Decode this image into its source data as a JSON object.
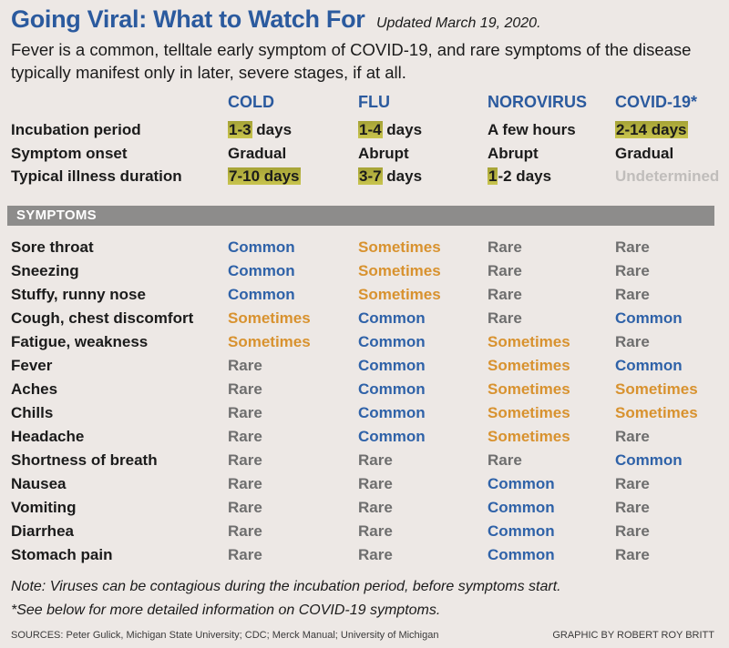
{
  "title": "Going Viral: What to Watch For",
  "updated": "Updated March 19, 2020.",
  "intro": "Fever is a common, telltale early symptom of COVID-19, and rare symptoms of the disease typically manifest only in later, severe stages, if at all.",
  "columns": [
    "COLD",
    "FLU",
    "NOROVIRUS",
    "COVID-19*"
  ],
  "summary_rows": [
    {
      "label": "Incubation period",
      "values": [
        {
          "hl": "1-3",
          "rest": " days"
        },
        {
          "hl": "1-4",
          "rest": " days"
        },
        {
          "hl": "",
          "rest": "A few hours"
        },
        {
          "hl": "2-14 days",
          "rest": ""
        }
      ]
    },
    {
      "label": "Symptom onset",
      "values": [
        {
          "hl": "",
          "rest": "Gradual"
        },
        {
          "hl": "",
          "rest": "Abrupt"
        },
        {
          "hl": "",
          "rest": "Abrupt"
        },
        {
          "hl": "",
          "rest": "Gradual"
        }
      ]
    },
    {
      "label": "Typical illness duration",
      "values": [
        {
          "hl": "7-10 days",
          "rest": ""
        },
        {
          "hl": "3-7",
          "rest": " days"
        },
        {
          "hl": "1",
          "rest": "-2 days"
        },
        {
          "hl": "",
          "rest": "Undetermined",
          "muted": true
        }
      ]
    }
  ],
  "symptoms_header": "SYMPTOMS",
  "symptoms": [
    {
      "label": "Sore throat",
      "values": [
        "Common",
        "Sometimes",
        "Rare",
        "Rare"
      ]
    },
    {
      "label": "Sneezing",
      "values": [
        "Common",
        "Sometimes",
        "Rare",
        "Rare"
      ]
    },
    {
      "label": "Stuffy, runny nose",
      "values": [
        "Common",
        "Sometimes",
        "Rare",
        "Rare"
      ]
    },
    {
      "label": "Cough, chest discomfort",
      "values": [
        "Sometimes",
        "Common",
        "Rare",
        "Common"
      ]
    },
    {
      "label": "Fatigue, weakness",
      "values": [
        "Sometimes",
        "Common",
        "Sometimes",
        "Rare"
      ]
    },
    {
      "label": "Fever",
      "values": [
        "Rare",
        "Common",
        "Sometimes",
        "Common"
      ]
    },
    {
      "label": "Aches",
      "values": [
        "Rare",
        "Common",
        "Sometimes",
        "Sometimes"
      ]
    },
    {
      "label": "Chills",
      "values": [
        "Rare",
        "Common",
        "Sometimes",
        "Sometimes"
      ]
    },
    {
      "label": "Headache",
      "values": [
        "Rare",
        "Common",
        "Sometimes",
        "Rare"
      ]
    },
    {
      "label": "Shortness of breath",
      "values": [
        "Rare",
        "Rare",
        "Rare",
        "Common"
      ]
    },
    {
      "label": "Nausea",
      "values": [
        "Rare",
        "Rare",
        "Common",
        "Rare"
      ]
    },
    {
      "label": "Vomiting",
      "values": [
        "Rare",
        "Rare",
        "Common",
        "Rare"
      ]
    },
    {
      "label": "Diarrhea",
      "values": [
        "Rare",
        "Rare",
        "Common",
        "Rare"
      ]
    },
    {
      "label": "Stomach pain",
      "values": [
        "Rare",
        "Rare",
        "Common",
        "Rare"
      ]
    }
  ],
  "notes": [
    "Note: Viruses can be contagious during the incubation period, before symptoms start.",
    "*See below for more detailed information on COVID-19 symptoms."
  ],
  "sources": "SOURCES: Peter Gulick, Michigan State University; CDC; Merck Manual; University of Michigan",
  "credit": "GRAPHIC BY ROBERT ROY BRITT",
  "colors": {
    "title": "#2b5a9e",
    "Common": "#2f62a8",
    "Sometimes": "#d8922f",
    "Rare": "#6e6e6e",
    "highlight": "#b8b444",
    "band": "#8d8c8b"
  }
}
